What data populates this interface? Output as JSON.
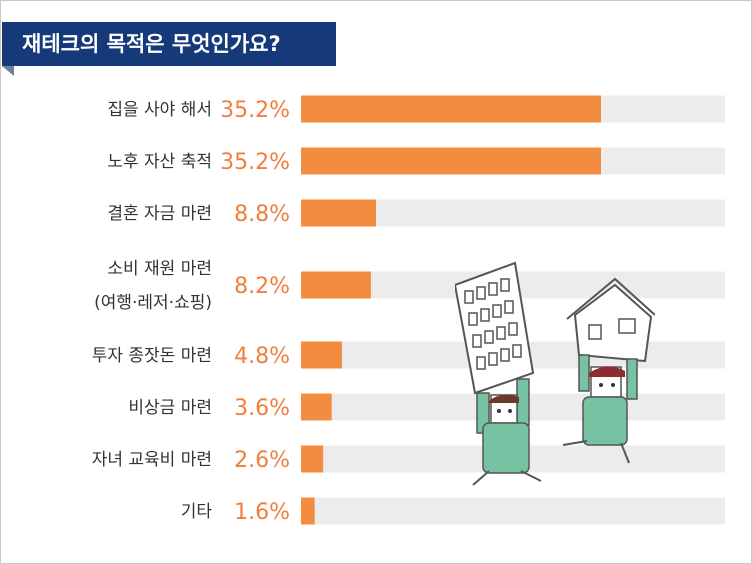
{
  "title": "재테크의 목적은 무엇인가요?",
  "colors": {
    "banner": "#16397a",
    "bar": "#f28c3f",
    "track": "#ececec",
    "value_text": "#f07f3c"
  },
  "chart_data": {
    "type": "bar",
    "orientation": "horizontal",
    "title": "재테크의 목적은 무엇인가요?",
    "unit": "%",
    "xlim": [
      0,
      50
    ],
    "grid": false,
    "legend": "none",
    "categories": [
      [
        "집을 사야 해서"
      ],
      [
        "노후 자산 축적"
      ],
      [
        "결혼 자금 마련"
      ],
      [
        "소비 재원 마련",
        "(여행·레저·쇼핑)"
      ],
      [
        "투자 종잣돈 마련"
      ],
      [
        "비상금 마련"
      ],
      [
        "자녀 교육비 마련"
      ],
      [
        "기타"
      ]
    ],
    "values": [
      35.2,
      35.2,
      8.8,
      8.2,
      4.8,
      3.6,
      2.6,
      1.6
    ],
    "value_labels": [
      "35.2%",
      "35.2%",
      "8.8%",
      "8.2%",
      "4.8%",
      "3.6%",
      "2.6%",
      "1.6%"
    ]
  }
}
